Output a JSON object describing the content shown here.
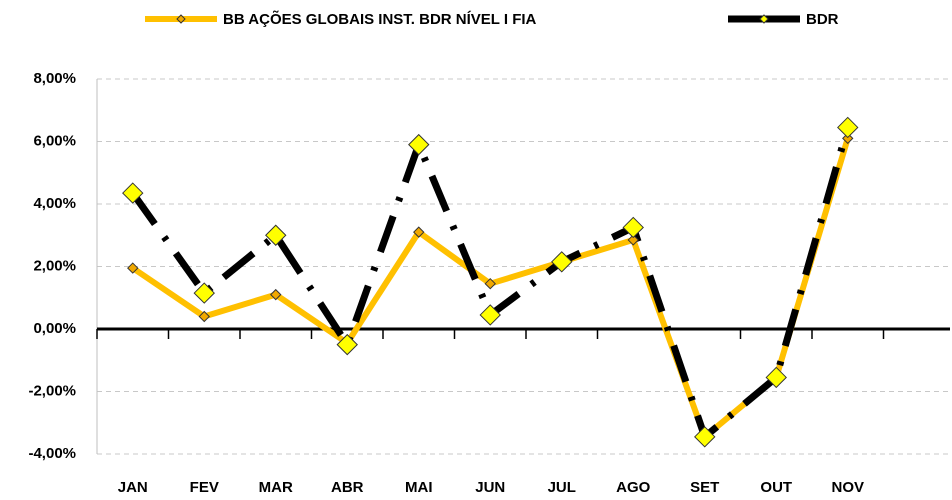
{
  "chart_data": {
    "type": "line",
    "categories": [
      "JAN",
      "FEV",
      "MAR",
      "ABR",
      "MAI",
      "JUN",
      "JUL",
      "AGO",
      "SET",
      "OUT",
      "NOV"
    ],
    "series": [
      {
        "name": "BB AÇÕES GLOBAIS INST. BDR NÍVEL I FIA",
        "color": "#ffc000",
        "values": [
          1.95,
          0.4,
          1.1,
          -0.45,
          3.1,
          1.45,
          2.15,
          2.85,
          -3.45,
          -1.55,
          6.1
        ]
      },
      {
        "name": "BDR",
        "color": "#000000",
        "values": [
          4.35,
          1.15,
          3.0,
          -0.5,
          5.9,
          0.45,
          2.15,
          3.25,
          -3.45,
          -1.55,
          6.45
        ]
      }
    ],
    "ylim": [
      -4,
      8
    ],
    "yticks": [
      {
        "value": -4,
        "label": "-4,00%"
      },
      {
        "value": -2,
        "label": "-2,00%"
      },
      {
        "value": 0,
        "label": "0,00%"
      },
      {
        "value": 2,
        "label": "2,00%"
      },
      {
        "value": 4,
        "label": "4,00%"
      },
      {
        "value": 6,
        "label": "6,00%"
      },
      {
        "value": 8,
        "label": "8,00%"
      }
    ],
    "grid": true
  }
}
